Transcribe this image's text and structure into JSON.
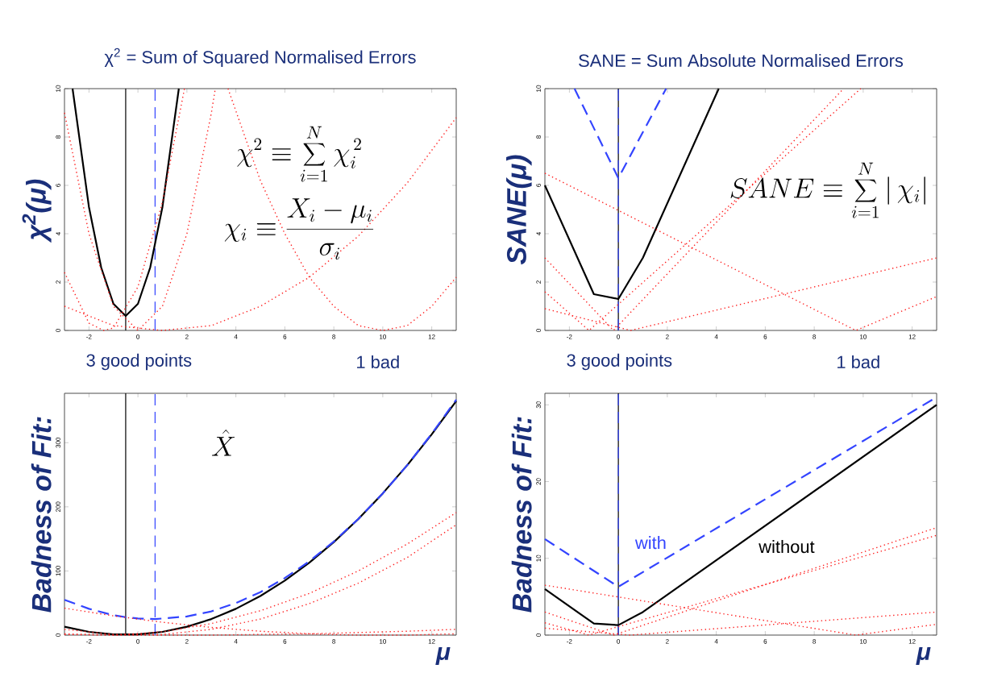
{
  "chart_data": [
    {
      "type": "line",
      "title": "χ$^{2}$ =  Sum of Squared Normalised Errors",
      "ylabel": "χ$^{2}$(μ)",
      "xlim": [
        -3,
        13
      ],
      "ylim": [
        0,
        10
      ],
      "xticks": [
        -2,
        0,
        2,
        4,
        6,
        8,
        10,
        12
      ],
      "yticks": [
        0,
        2,
        4,
        6,
        8,
        10
      ],
      "series": [
        {
          "color": "#000000",
          "line_style": "solid",
          "x": [
            -2.67,
            -2,
            -1.5,
            -1,
            -0.5,
            0,
            0.5,
            1,
            1.67
          ],
          "values": [
            10,
            5.1,
            2.6,
            1.1,
            0.6,
            1.1,
            2.6,
            5.1,
            10
          ]
        },
        {
          "color": "#ff2020",
          "line_style": "dotted",
          "x": [
            -3,
            -2,
            -1.4,
            -1,
            0,
            1,
            1.9
          ],
          "values": [
            2.4,
            0.3,
            0,
            0.1,
            1.8,
            5.3,
            10
          ]
        },
        {
          "color": "#ff2020",
          "line_style": "dotted",
          "x": [
            -3,
            -2,
            -1,
            0,
            1,
            2,
            3,
            3.16
          ],
          "values": [
            9,
            4,
            1,
            0,
            1,
            4,
            9,
            10
          ]
        },
        {
          "color": "#ff2020",
          "line_style": "dotted",
          "x": [
            -3,
            -1,
            1,
            3,
            5,
            7,
            9,
            11,
            13
          ],
          "values": [
            1,
            0.2,
            0,
            0.2,
            1,
            2.2,
            3.9,
            6.1,
            8.8
          ]
        },
        {
          "color": "#ff2020",
          "line_style": "dotted",
          "x": [
            3.68,
            5,
            6,
            7,
            8,
            9,
            10,
            11,
            12,
            13
          ],
          "values": [
            10,
            6.2,
            4,
            2.2,
            1,
            0.2,
            0,
            0.2,
            1,
            2.2
          ]
        }
      ],
      "ref_lines": [
        {
          "axis": "x",
          "value": -0.5,
          "color": "#000000",
          "line_style": "solid"
        },
        {
          "axis": "x",
          "value": 0.7,
          "color": "#3344ff",
          "line_style": "dashed"
        }
      ],
      "annotations": [
        "\\chi^{2} \\equiv \\sum_{i=1}^{N} \\chi_i^{\\,2}",
        "\\chi_i \\equiv \\frac{X_i - \\mu_i}{\\sigma_i}"
      ]
    },
    {
      "type": "line",
      "title": "SANE =  Sum Absolute Normalised Errors",
      "ylabel": "SANE(μ)",
      "xlim": [
        -3,
        13
      ],
      "ylim": [
        0,
        10
      ],
      "xticks": [
        -2,
        0,
        2,
        4,
        6,
        8,
        10,
        12
      ],
      "yticks": [
        0,
        2,
        4,
        6,
        8,
        10
      ],
      "series": [
        {
          "color": "#000000",
          "line_style": "solid",
          "x": [
            -3,
            -1,
            0,
            1,
            4.1
          ],
          "values": [
            6,
            1.5,
            1.3,
            3,
            10
          ]
        },
        {
          "color": "#3344ff",
          "line_style": "dashed",
          "x": [
            -1.79,
            0,
            1.95
          ],
          "values": [
            10,
            6.3,
            10
          ]
        },
        {
          "color": "#ff2020",
          "line_style": "dotted",
          "x": [
            -3,
            9.7,
            13
          ],
          "values": [
            6.5,
            0,
            1.4
          ]
        },
        {
          "color": "#ff2020",
          "line_style": "dotted",
          "x": [
            -3,
            0.5,
            13
          ],
          "values": [
            0.9,
            0,
            3
          ]
        },
        {
          "color": "#ff2020",
          "line_style": "dotted",
          "x": [
            -3,
            -0.2,
            9.2
          ],
          "values": [
            3,
            0,
            10
          ]
        },
        {
          "color": "#ff2020",
          "line_style": "dotted",
          "x": [
            -3,
            -1.2,
            9.9
          ],
          "values": [
            1.6,
            0,
            10
          ]
        }
      ],
      "ref_lines": [
        {
          "axis": "x",
          "value": 0,
          "color": "#000000",
          "line_style": "solid"
        },
        {
          "axis": "x",
          "value": 0,
          "color": "#3344ff",
          "line_style": "dashed"
        }
      ],
      "annotations": [
        "SANE \\equiv \\sum_{i=1}^{N} \\left| \\, \\chi_i \\right|"
      ]
    },
    {
      "type": "line",
      "ylabel": "Badness of Fit:",
      "xlabel": "μ",
      "xlim": [
        -3,
        13
      ],
      "ylim": [
        0,
        377
      ],
      "xticks": [
        -2,
        0,
        2,
        4,
        6,
        8,
        10,
        12
      ],
      "yticks": [
        0,
        100,
        200,
        300
      ],
      "series": [
        {
          "color": "#000000",
          "line_style": "solid",
          "x": [
            -3,
            -2,
            -1,
            -0.5,
            0,
            1,
            2,
            3,
            4,
            5,
            6,
            7,
            8,
            9,
            10,
            11,
            12,
            13
          ],
          "values": [
            13,
            5,
            1,
            1,
            1,
            5,
            13,
            25,
            41,
            61,
            85,
            113,
            145,
            181,
            221,
            265,
            313,
            365
          ]
        },
        {
          "color": "#3344ff",
          "line_style": "dashed",
          "x": [
            -3,
            -2,
            -1,
            -0.5,
            0,
            0.7,
            2,
            3,
            4,
            5,
            6,
            7,
            8,
            9,
            10,
            11,
            12,
            13
          ],
          "values": [
            55,
            41,
            31,
            28,
            26,
            25,
            29,
            37,
            50,
            67,
            89,
            115,
            146,
            181,
            221,
            265,
            314,
            367
          ]
        },
        {
          "color": "#ff2020",
          "line_style": "dotted",
          "x": [
            -3,
            -1,
            1,
            3,
            5,
            7,
            9,
            11,
            13
          ],
          "values": [
            2,
            0,
            5,
            18,
            38,
            65,
            100,
            142,
            191
          ]
        },
        {
          "color": "#ff2020",
          "line_style": "dotted",
          "x": [
            -3,
            -1,
            1,
            3,
            5,
            7,
            9,
            11,
            13
          ],
          "values": [
            9,
            1,
            1,
            9,
            25,
            49,
            81,
            121,
            172
          ]
        },
        {
          "color": "#ff2020",
          "line_style": "dotted",
          "x": [
            -3,
            -1,
            1,
            3,
            5,
            7,
            9,
            11,
            13
          ],
          "values": [
            1,
            0,
            0,
            0,
            1,
            2,
            4,
            6,
            9
          ]
        },
        {
          "color": "#ff2020",
          "line_style": "dotted",
          "x": [
            -3,
            -1,
            1,
            3,
            5,
            7,
            9,
            10,
            11,
            13
          ],
          "values": [
            42,
            30,
            20,
            12,
            6,
            2,
            0,
            0,
            0,
            2
          ]
        }
      ],
      "ref_lines": [
        {
          "axis": "x",
          "value": -0.5,
          "color": "#000000",
          "line_style": "solid"
        },
        {
          "axis": "x",
          "value": 0.7,
          "color": "#3344ff",
          "line_style": "dashed"
        }
      ],
      "annotations": [
        "3 good points",
        "1 bad",
        "\\hat{X}"
      ]
    },
    {
      "type": "line",
      "ylabel": "Badness of Fit:",
      "xlabel": "μ",
      "xlim": [
        -3,
        13
      ],
      "ylim": [
        0,
        31.5
      ],
      "xticks": [
        -2,
        0,
        2,
        4,
        6,
        8,
        10,
        12
      ],
      "yticks": [
        0,
        10,
        20,
        30
      ],
      "series": [
        {
          "name": "without",
          "color": "#000000",
          "line_style": "solid",
          "x": [
            -3,
            -1,
            0,
            1,
            13
          ],
          "values": [
            6,
            1.5,
            1.3,
            3,
            30
          ]
        },
        {
          "name": "with",
          "color": "#3344ff",
          "line_style": "dashed",
          "x": [
            -3,
            0,
            13
          ],
          "values": [
            12.5,
            6.3,
            31
          ]
        },
        {
          "color": "#ff2020",
          "line_style": "dotted",
          "x": [
            -3,
            9.7,
            13
          ],
          "values": [
            6.5,
            0,
            1.4
          ]
        },
        {
          "color": "#ff2020",
          "line_style": "dotted",
          "x": [
            -3,
            0.5,
            13
          ],
          "values": [
            0.9,
            0,
            3
          ]
        },
        {
          "color": "#ff2020",
          "line_style": "dotted",
          "x": [
            -3,
            -0.2,
            13
          ],
          "values": [
            3,
            0,
            14
          ]
        },
        {
          "color": "#ff2020",
          "line_style": "dotted",
          "x": [
            -3,
            -1.2,
            13
          ],
          "values": [
            1.6,
            0,
            13
          ]
        }
      ],
      "ref_lines": [
        {
          "axis": "x",
          "value": 0,
          "color": "#000000",
          "line_style": "solid"
        },
        {
          "axis": "x",
          "value": 0,
          "color": "#3344ff",
          "line_style": "dashed"
        }
      ],
      "annotations": [
        "3 good points",
        "1 bad"
      ]
    }
  ]
}
